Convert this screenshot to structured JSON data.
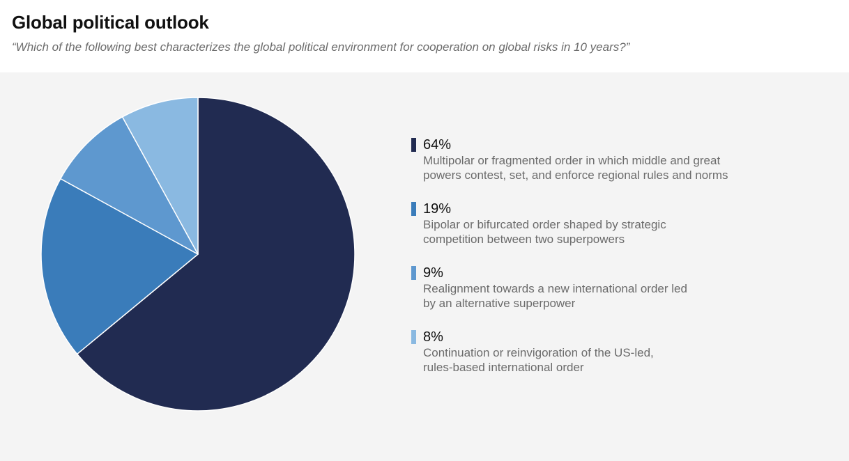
{
  "header": {
    "title": "Global political outlook",
    "subtitle": "“Which of the following best characterizes the global political environment for cooperation on global risks in 10 years?”"
  },
  "chart_data": {
    "type": "pie",
    "title": "Global political outlook",
    "slices": [
      {
        "label": "64%",
        "value": 64,
        "color": "#212b51",
        "description": "Multipolar or fragmented order in which middle and great powers contest, set, and enforce regional rules and norms"
      },
      {
        "label": "19%",
        "value": 19,
        "color": "#3a7cba",
        "description": "Bipolar or bifurcated order shaped by strategic competition between two superpowers"
      },
      {
        "label": "9%",
        "value": 9,
        "color": "#5e98cf",
        "description": "Realignment towards a new international order led by an alternative superpower"
      },
      {
        "label": "8%",
        "value": 8,
        "color": "#8ab9e1",
        "description": "Continuation or reinvigoration of the US-led, rules-based international order"
      }
    ],
    "legend_position": "right"
  }
}
